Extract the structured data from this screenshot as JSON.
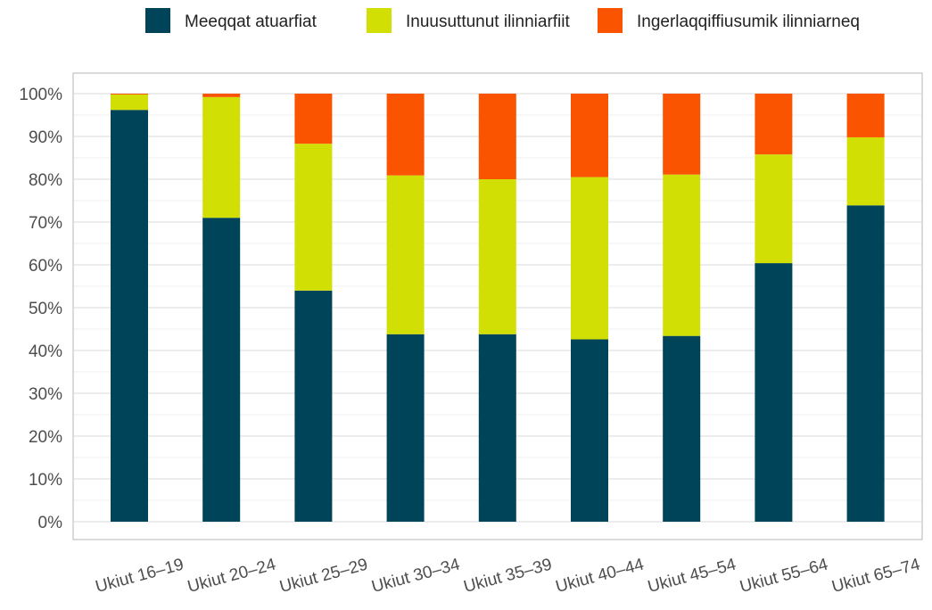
{
  "chart_data": {
    "type": "bar",
    "stacked": true,
    "percent": true,
    "categories": [
      "Ukiut 16–19",
      "Ukiut 20–24",
      "Ukiut 25–29",
      "Ukiut 30–34",
      "Ukiut 35–39",
      "Ukiut 40–44",
      "Ukiut 45–54",
      "Ukiut 55–64",
      "Ukiut 65–74"
    ],
    "series": [
      {
        "name": "Meeqqat atuarfiat",
        "color": "#00445a",
        "values": [
          96.2,
          71.0,
          54.0,
          43.8,
          43.8,
          42.6,
          43.4,
          60.4,
          73.9
        ]
      },
      {
        "name": "Inuusuttunut ilinniarfiit",
        "color": "#d2df05",
        "values": [
          3.6,
          28.2,
          34.3,
          37.1,
          36.2,
          37.9,
          37.7,
          25.4,
          15.9
        ]
      },
      {
        "name": "Ingerlaqqiffiusumik ilinniarneq",
        "color": "#fa5400",
        "values": [
          0.2,
          0.8,
          11.7,
          19.1,
          20.0,
          19.5,
          18.9,
          14.2,
          10.2
        ]
      }
    ],
    "ylim": [
      0,
      100
    ],
    "yticks": [
      "0%",
      "10%",
      "20%",
      "30%",
      "40%",
      "50%",
      "60%",
      "70%",
      "80%",
      "90%",
      "100%"
    ],
    "xlabel": "",
    "ylabel": "",
    "grid": true,
    "legend": "top"
  }
}
